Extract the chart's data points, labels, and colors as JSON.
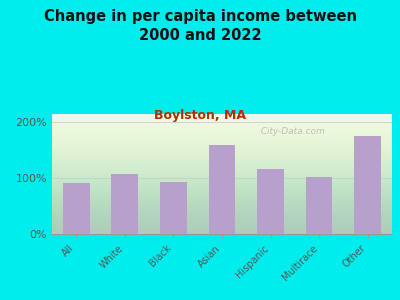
{
  "title": "Change in per capita income between\n2000 and 2022",
  "subtitle": "Boylston, MA",
  "categories": [
    "All",
    "White",
    "Black",
    "Asian",
    "Hispanic",
    "Multirace",
    "Other"
  ],
  "values": [
    92,
    107,
    93,
    160,
    117,
    103,
    175
  ],
  "bar_color": "#b8a0cc",
  "background_outer": "#00eded",
  "title_color": "#111111",
  "subtitle_color": "#aa3300",
  "tick_label_color": "#555555",
  "ylabel_ticks": [
    0,
    100,
    200
  ],
  "ylabel_labels": [
    "0%",
    "100%",
    "200%"
  ],
  "ylim": [
    0,
    215
  ],
  "watermark": "  City-Data.com"
}
